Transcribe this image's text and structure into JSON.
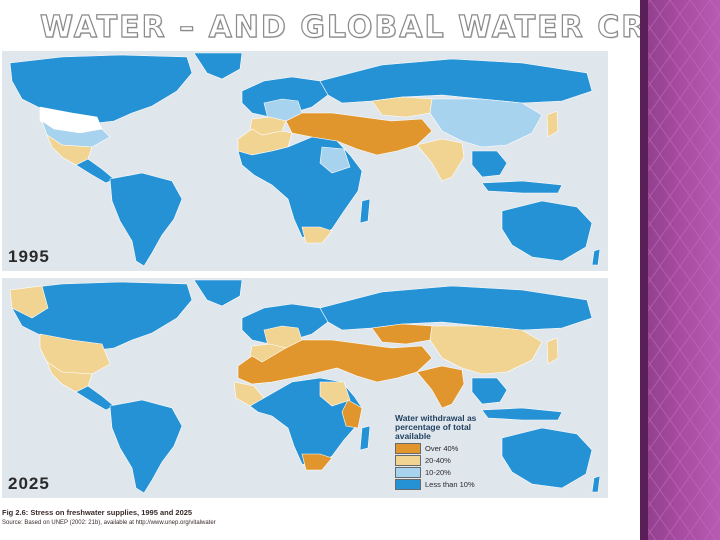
{
  "slide": {
    "title": "WATER – AND GLOBAL WATER CRISIS"
  },
  "figure": {
    "caption": "Fig 2.6: Stress on freshwater supplies, 1995 and 2025",
    "source": "Source: Based on UNEP (2002: 21b), available at http://www.unep.org/vitalwater"
  },
  "maps": [
    {
      "year": "1995"
    },
    {
      "year": "2025"
    }
  ],
  "legend": {
    "title": "Water withdrawal as percentage of total available",
    "items": [
      {
        "label": "Over 40%",
        "color": "#e0962c"
      },
      {
        "label": "20-40%",
        "color": "#f1d392"
      },
      {
        "label": "10-20%",
        "color": "#a7d3ee"
      },
      {
        "label": "Less than 10%",
        "color": "#2592d6"
      }
    ]
  },
  "colors": {
    "ocean": "#dfe6ec",
    "no_data": "#ffffff",
    "side_panel": "#a44a9f"
  }
}
